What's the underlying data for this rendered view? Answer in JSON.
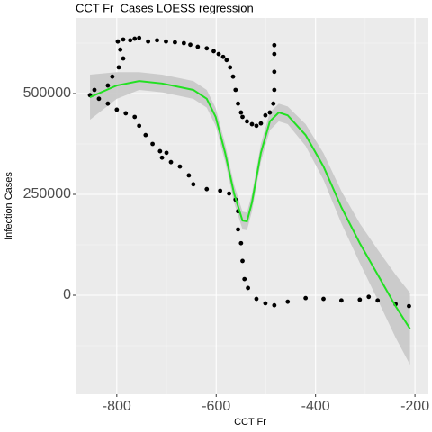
{
  "chart_data": {
    "type": "scatter-loess",
    "title": "CCT Fr_Cases LOESS regression",
    "x_label": "CCT Fr",
    "y_label": "Infection Cases",
    "xlim": [
      -883,
      -173
    ],
    "ylim": [
      -245500,
      687500
    ],
    "xticks": [
      -800,
      -600,
      -400,
      -200
    ],
    "yticks": [
      0,
      250000,
      500000
    ],
    "grid": true,
    "point_color": "#000000",
    "line_color": "#22e022",
    "band_color": "#c8c8c8",
    "points": {
      "x": [
        -798,
        -787,
        -773,
        -764,
        -755,
        -737,
        -719,
        -701,
        -683,
        -665,
        -652,
        -637,
        -619,
        -605,
        -595,
        -586,
        -579,
        -572,
        -566,
        -561,
        -556,
        -550,
        -547,
        -538,
        -528,
        -519,
        -510,
        -501,
        -492,
        -485,
        -483,
        -483,
        -483,
        -483,
        -854,
        -845,
        -818,
        -809,
        -796,
        -787,
        -793,
        -836,
        -818,
        -800,
        -782,
        -764,
        -755,
        -742,
        -728,
        -713,
        -700,
        -709,
        -691,
        -673,
        -655,
        -646,
        -619,
        -592,
        -574,
        -561,
        -556,
        -556,
        -550,
        -547,
        -543,
        -536,
        -519,
        -501,
        -483,
        -456,
        -420,
        -384,
        -348,
        -311,
        -293,
        -275,
        -239,
        -212
      ],
      "y": [
        629000,
        634000,
        632000,
        636000,
        638000,
        629000,
        632000,
        629000,
        627000,
        625000,
        621000,
        616000,
        612000,
        605000,
        598000,
        591000,
        583000,
        565000,
        542000,
        509000,
        475000,
        453000,
        442000,
        431000,
        424000,
        420000,
        426000,
        446000,
        453000,
        475000,
        509000,
        554000,
        598000,
        620000,
        496000,
        509000,
        520000,
        542000,
        565000,
        587000,
        609000,
        487000,
        475000,
        460000,
        451000,
        442000,
        420000,
        397000,
        375000,
        357000,
        353000,
        341000,
        330000,
        319000,
        297000,
        275000,
        263000,
        259000,
        252000,
        237000,
        208000,
        163000,
        129000,
        85000,
        40000,
        18000,
        -9000,
        -20000,
        -25000,
        -16000,
        -7000,
        -9000,
        -13000,
        -11000,
        -4000,
        -13000,
        -22000,
        -27000
      ]
    },
    "loess": {
      "x": [
        -854,
        -800,
        -755,
        -709,
        -673,
        -646,
        -619,
        -601,
        -582,
        -564,
        -547,
        -538,
        -528,
        -510,
        -492,
        -474,
        -456,
        -420,
        -384,
        -348,
        -311,
        -275,
        -239,
        -210
      ],
      "y": [
        491000,
        520000,
        531000,
        525000,
        516000,
        509000,
        487000,
        442000,
        353000,
        252000,
        185000,
        183000,
        230000,
        353000,
        431000,
        453000,
        446000,
        397000,
        319000,
        218000,
        129000,
        51000,
        -27000,
        -83000
      ],
      "lower": [
        435000,
        487000,
        509000,
        503000,
        494000,
        487000,
        465000,
        420000,
        331000,
        230000,
        163000,
        161000,
        208000,
        331000,
        409000,
        431000,
        424000,
        370000,
        286000,
        178000,
        80000,
        -11000,
        -105000,
        -172000
      ],
      "upper": [
        547000,
        553000,
        553000,
        547000,
        538000,
        531000,
        509000,
        464000,
        375000,
        274000,
        207000,
        205000,
        252000,
        375000,
        453000,
        475000,
        468000,
        424000,
        352000,
        258000,
        178000,
        113000,
        51000,
        6000
      ]
    }
  }
}
